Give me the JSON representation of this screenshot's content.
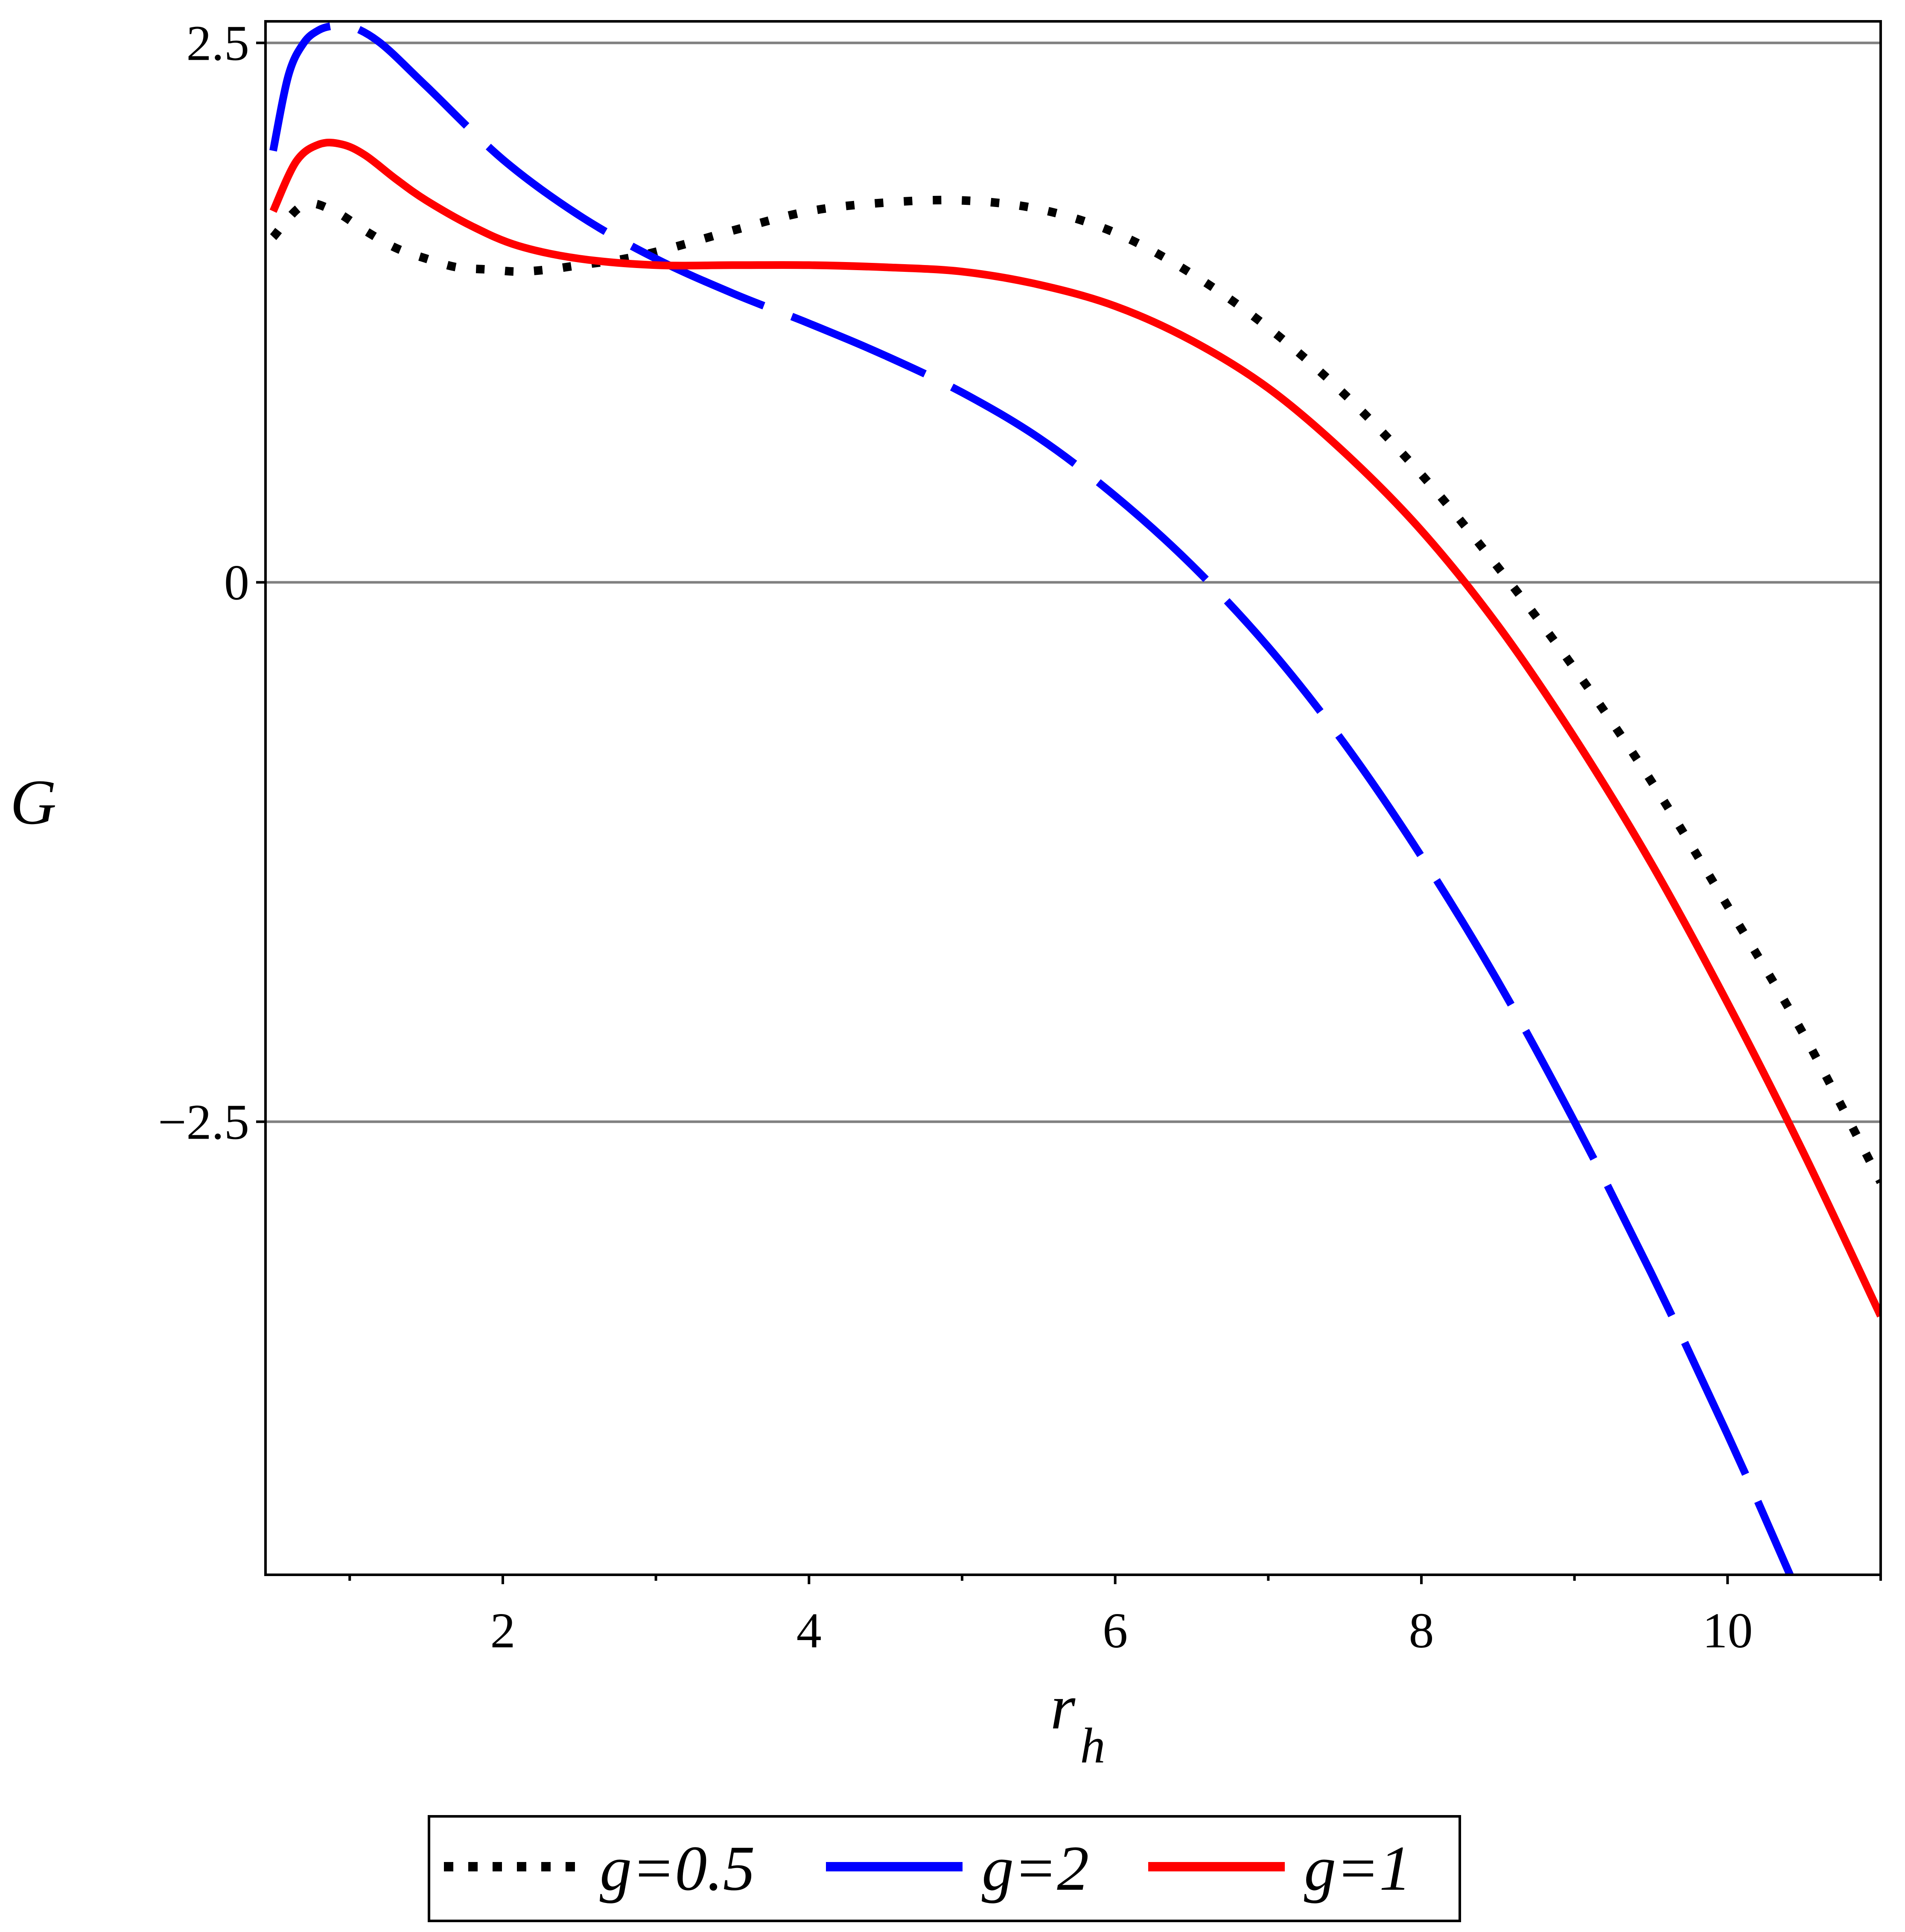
{
  "chart_data": {
    "type": "line",
    "xlabel": "r",
    "xlabel_sub": "h",
    "ylabel": "G",
    "xlim": [
      0.45,
      11.0
    ],
    "ylim": [
      -4.6,
      2.6
    ],
    "x_ticks": [
      2,
      4,
      6,
      8,
      10
    ],
    "x_minor_ticks": [
      1,
      3,
      5,
      7,
      9,
      11
    ],
    "y_ticks": [
      2.5,
      0,
      -2.5
    ],
    "y_tick_labels": [
      "2.5",
      "0",
      "−2.5"
    ],
    "grid": "horizontal lines at y ticks",
    "legend_placement": "bottom-center, below plot",
    "series": [
      {
        "name": "g=0.5",
        "legend_label": "g=0.5",
        "color": "#000000",
        "style": "dotted",
        "x": [
          0.5,
          0.7,
          0.9,
          1.1,
          1.3,
          1.5,
          1.7,
          1.9,
          2.1,
          2.3,
          2.5,
          2.8,
          3.1,
          3.5,
          4.0,
          4.5,
          5.0,
          5.5,
          6.0,
          6.5,
          7.0,
          7.5,
          8.0,
          8.5,
          9.0,
          9.5,
          10.0,
          10.5,
          11.0
        ],
        "y": [
          1.6,
          1.75,
          1.72,
          1.63,
          1.55,
          1.5,
          1.46,
          1.45,
          1.44,
          1.45,
          1.47,
          1.5,
          1.55,
          1.63,
          1.72,
          1.76,
          1.77,
          1.73,
          1.62,
          1.43,
          1.18,
          0.87,
          0.5,
          0.07,
          -0.4,
          -0.92,
          -1.5,
          -2.1,
          -2.78
        ]
      },
      {
        "name": "g=2",
        "legend_label": "g=2",
        "color": "#0000ff",
        "style": "dashed",
        "x": [
          0.5,
          0.6,
          0.7,
          0.8,
          0.9,
          1.0,
          1.2,
          1.5,
          2.0,
          2.5,
          3.0,
          3.5,
          4.0,
          4.5,
          5.0,
          5.5,
          6.0,
          6.5,
          7.0,
          7.5,
          8.0,
          8.5,
          9.0,
          9.5,
          10.0,
          10.5,
          11.0
        ],
        "y": [
          2.0,
          2.35,
          2.5,
          2.56,
          2.58,
          2.58,
          2.5,
          2.3,
          1.96,
          1.7,
          1.5,
          1.34,
          1.2,
          1.05,
          0.88,
          0.67,
          0.4,
          0.08,
          -0.3,
          -0.75,
          -1.27,
          -1.85,
          -2.5,
          -3.2,
          -3.95,
          -4.75,
          -5.6
        ]
      },
      {
        "name": "g=1",
        "legend_label": "g=1",
        "color": "#ff0000",
        "style": "solid",
        "x": [
          0.5,
          0.65,
          0.8,
          0.95,
          1.1,
          1.3,
          1.5,
          1.8,
          2.1,
          2.5,
          3.0,
          3.5,
          4.0,
          4.5,
          5.0,
          5.5,
          6.0,
          6.5,
          7.0,
          7.5,
          8.0,
          8.5,
          9.0,
          9.5,
          10.0,
          10.5,
          11.0
        ],
        "y": [
          1.72,
          1.95,
          2.03,
          2.03,
          1.98,
          1.87,
          1.77,
          1.65,
          1.56,
          1.5,
          1.47,
          1.47,
          1.47,
          1.46,
          1.44,
          1.38,
          1.28,
          1.12,
          0.9,
          0.6,
          0.24,
          -0.2,
          -0.72,
          -1.3,
          -1.95,
          -2.65,
          -3.4
        ]
      }
    ]
  }
}
